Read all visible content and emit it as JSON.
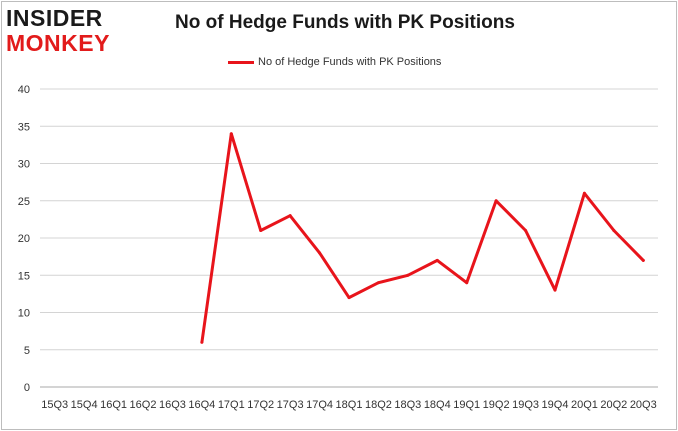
{
  "brand": {
    "line1": "INSIDER",
    "line2": "MONKEY"
  },
  "chart_data": {
    "type": "line",
    "title": "No of Hedge Funds with PK Positions",
    "xlabel": "",
    "ylabel": "",
    "categories": [
      "15Q3",
      "15Q4",
      "16Q1",
      "16Q2",
      "16Q3",
      "16Q4",
      "17Q1",
      "17Q2",
      "17Q3",
      "17Q4",
      "18Q1",
      "18Q2",
      "18Q3",
      "18Q4",
      "19Q1",
      "19Q2",
      "19Q3",
      "19Q4",
      "20Q1",
      "20Q2",
      "20Q3"
    ],
    "series": [
      {
        "name": "No of Hedge Funds with PK Positions",
        "color": "#e8141b",
        "values": [
          null,
          null,
          null,
          null,
          null,
          6,
          34,
          21,
          23,
          18,
          12,
          14,
          15,
          17,
          14,
          25,
          21,
          13,
          26,
          21,
          17
        ]
      }
    ],
    "ylim": [
      0,
      40
    ],
    "yticks": [
      0,
      5,
      10,
      15,
      20,
      25,
      30,
      35,
      40
    ],
    "grid": true,
    "legend": "top-center"
  }
}
